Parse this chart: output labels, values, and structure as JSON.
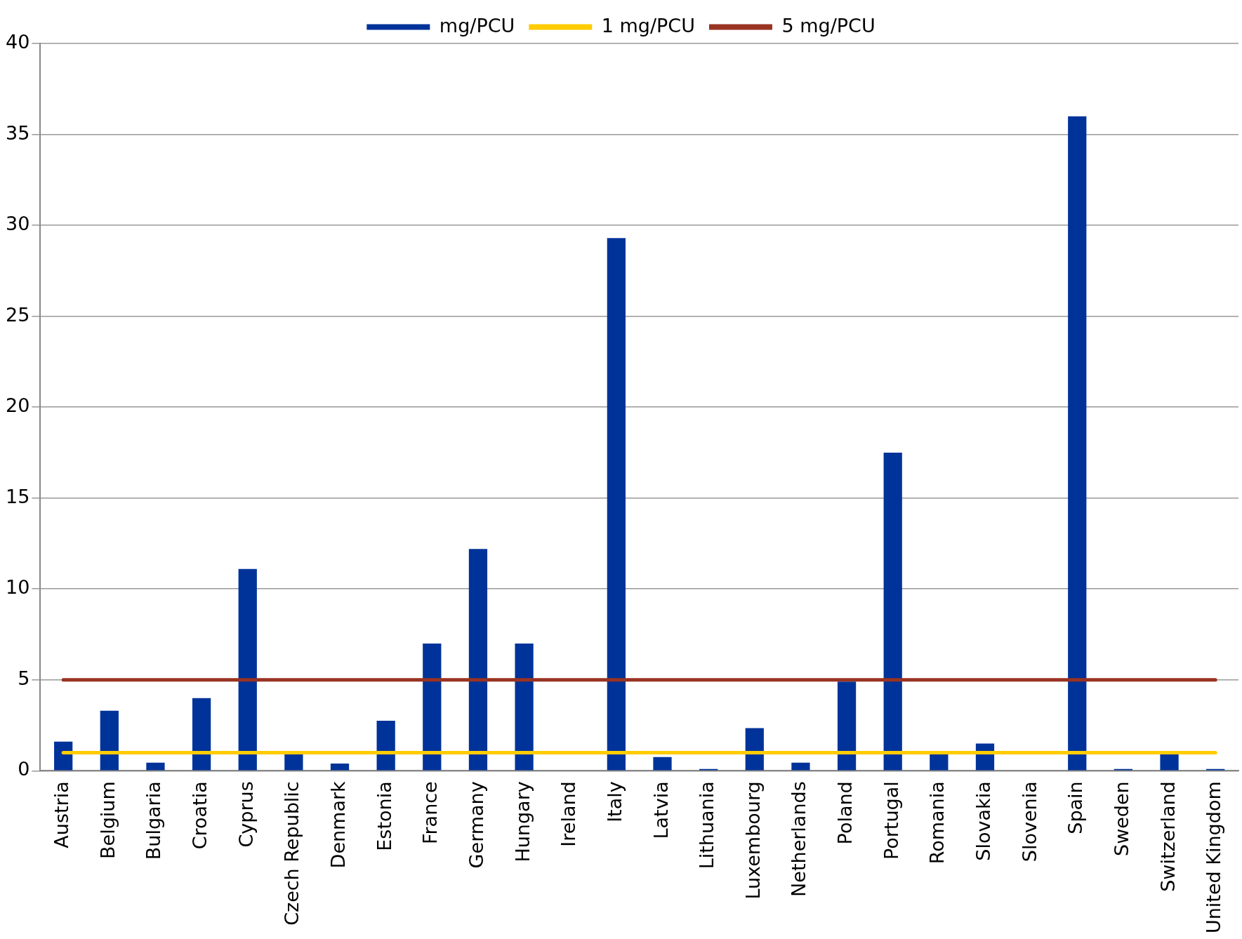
{
  "chart_data": {
    "type": "bar",
    "categories": [
      "Austria",
      "Belgium",
      "Bulgaria",
      "Croatia",
      "Cyprus",
      "Czech Republic",
      "Denmark",
      "Estonia",
      "France",
      "Germany",
      "Hungary",
      "Ireland",
      "Italy",
      "Latvia",
      "Lithuania",
      "Luxembourg",
      "Netherlands",
      "Poland",
      "Portugal",
      "Romania",
      "Slovakia",
      "Slovenia",
      "Spain",
      "Sweden",
      "Switzerland",
      "United Kingdom"
    ],
    "series": [
      {
        "name": "mg/PCU",
        "color": "#003399",
        "values": [
          1.6,
          3.3,
          0.45,
          4.0,
          11.1,
          0.9,
          0.4,
          2.75,
          7.0,
          12.2,
          7.0,
          0,
          29.3,
          0.75,
          0.1,
          2.35,
          0.45,
          4.9,
          17.5,
          0.9,
          1.5,
          0,
          36.0,
          0.1,
          0.9,
          0.1
        ]
      },
      {
        "name": "1 mg/PCU",
        "type": "line",
        "color": "#ffcc00",
        "values": [
          1,
          1,
          1,
          1,
          1,
          1,
          1,
          1,
          1,
          1,
          1,
          1,
          1,
          1,
          1,
          1,
          1,
          1,
          1,
          1,
          1,
          1,
          1,
          1,
          1,
          1
        ]
      },
      {
        "name": "5 mg/PCU",
        "type": "line",
        "color": "#993322",
        "values": [
          5,
          5,
          5,
          5,
          5,
          5,
          5,
          5,
          5,
          5,
          5,
          5,
          5,
          5,
          5,
          5,
          5,
          5,
          5,
          5,
          5,
          5,
          5,
          5,
          5,
          5
        ]
      }
    ],
    "ylim": [
      0,
      40
    ],
    "yticks": [
      0,
      5,
      10,
      15,
      20,
      25,
      30,
      35,
      40
    ],
    "grid": "y",
    "legend": "top",
    "marker": "none"
  }
}
